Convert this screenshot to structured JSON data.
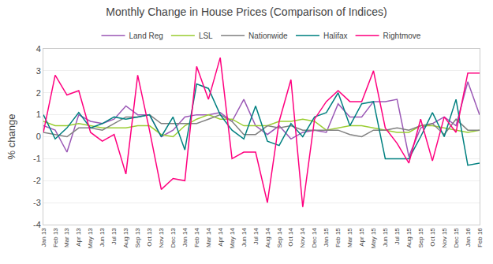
{
  "chart_data": {
    "type": "line",
    "title": "Monthly Change in House Prices (Comparison of Indices)",
    "ylabel": "% change",
    "categories": [
      "Jan 13",
      "Feb 13",
      "Mar 13",
      "Apr 13",
      "May 13",
      "Jun 13",
      "Jul 13",
      "Aug 13",
      "Sep 13",
      "Oct 13",
      "Nov 13",
      "Dec 13",
      "Jan 14",
      "Feb 14",
      "Mar 14",
      "Apr 14",
      "May 14",
      "Jun 14",
      "Jul 14",
      "Aug 14",
      "Sep 14",
      "Oct 14",
      "Nov 14",
      "Dec 14",
      "Jan 15",
      "Feb 15",
      "Mar 15",
      "Apr 15",
      "May 15",
      "Jun 15",
      "Jul 15",
      "Aug 15",
      "Sep 15",
      "Oct 15",
      "Nov 15",
      "Dec 15",
      "Jan 16",
      "Feb 16"
    ],
    "series": [
      {
        "name": "Land Reg",
        "color": "#9b59b6",
        "values": [
          0.5,
          0.3,
          -0.7,
          1.0,
          0.7,
          0.6,
          0.8,
          1.4,
          1.0,
          1.0,
          0.0,
          0.3,
          0.9,
          1.0,
          1.0,
          1.1,
          0.7,
          1.7,
          0.5,
          0.1,
          0.5,
          -0.1,
          0.2,
          0.3,
          0.2,
          1.5,
          0.9,
          0.9,
          1.6,
          1.6,
          1.7,
          -0.9,
          0.4,
          0.6,
          0.9,
          0.5,
          2.5,
          1.0
        ]
      },
      {
        "name": "LSL",
        "color": "#9acd32",
        "values": [
          0.7,
          0.5,
          0.5,
          0.6,
          0.5,
          0.4,
          0.4,
          0.4,
          0.5,
          0.5,
          0.1,
          0.0,
          0.5,
          0.8,
          1.0,
          0.8,
          0.8,
          0.5,
          0.5,
          0.5,
          0.7,
          0.7,
          0.8,
          0.7,
          0.3,
          0.4,
          0.5,
          0.5,
          0.4,
          0.3,
          0.2,
          0.2,
          0.5,
          0.5,
          0.4,
          0.3,
          0.2,
          0.3
        ]
      },
      {
        "name": "Nationwide",
        "color": "#808080",
        "values": [
          0.2,
          0.1,
          0.0,
          0.4,
          0.4,
          0.3,
          0.6,
          0.9,
          0.9,
          1.0,
          0.6,
          0.6,
          0.6,
          0.6,
          0.8,
          1.0,
          0.7,
          0.1,
          0.1,
          0.5,
          0.4,
          0.5,
          0.3,
          0.3,
          0.3,
          0.3,
          0.1,
          0.0,
          0.3,
          0.3,
          0.4,
          0.3,
          0.5,
          0.6,
          0.1,
          0.8,
          0.3,
          0.3
        ]
      },
      {
        "name": "Halifax",
        "color": "#008080",
        "values": [
          1.0,
          -0.1,
          0.4,
          1.1,
          0.4,
          0.6,
          0.9,
          0.8,
          0.9,
          1.0,
          0.0,
          0.9,
          -0.6,
          2.4,
          2.2,
          1.0,
          0.3,
          -0.1,
          1.4,
          -0.2,
          -0.4,
          0.6,
          0.0,
          0.9,
          1.1,
          2.0,
          0.5,
          1.5,
          1.6,
          -1.0,
          -1.0,
          -1.0,
          0.0,
          1.1,
          0.0,
          1.7,
          -1.3,
          -1.2
        ]
      },
      {
        "name": "Rightmove",
        "color": "#ff007f",
        "values": [
          0.2,
          2.8,
          1.9,
          2.1,
          0.2,
          -0.2,
          0.1,
          -1.7,
          2.8,
          0.3,
          -2.4,
          -1.9,
          -2.0,
          3.2,
          1.7,
          3.6,
          -1.0,
          -0.7,
          -0.7,
          -3.0,
          0.7,
          2.6,
          -3.2,
          0.8,
          1.6,
          2.1,
          1.6,
          1.6,
          3.0,
          0.4,
          -0.3,
          -1.2,
          0.8,
          -1.1,
          0.9,
          0.2,
          2.9,
          2.9
        ]
      }
    ],
    "ylim": [
      -4,
      4
    ],
    "yticks": [
      -4,
      -3,
      -2,
      -1,
      0,
      1,
      2,
      3,
      4
    ],
    "grid": true,
    "legend": "top"
  }
}
